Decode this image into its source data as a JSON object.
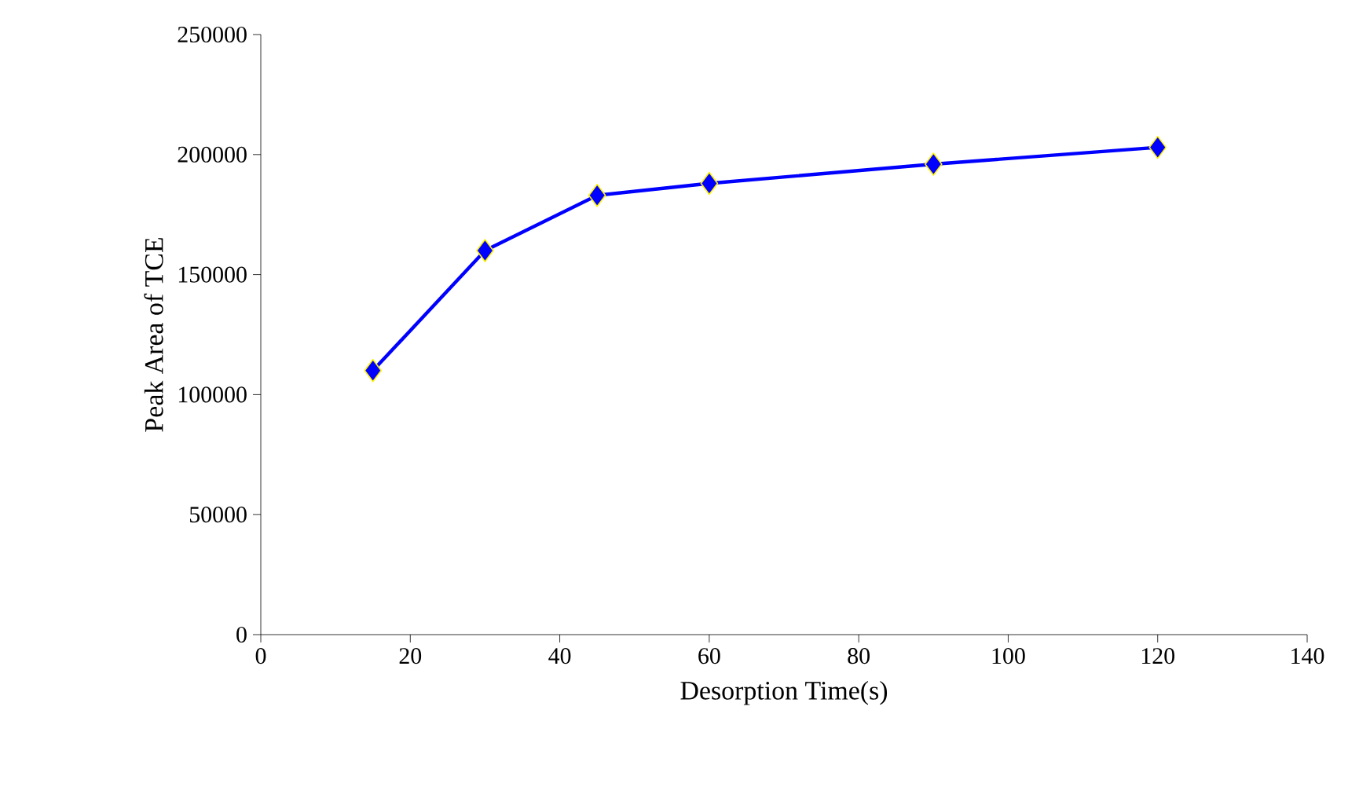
{
  "chart_data": {
    "type": "line",
    "xlabel": "Desorption Time(s)",
    "ylabel": "Peak Area of TCE",
    "x": [
      15,
      30,
      45,
      60,
      90,
      120
    ],
    "series": [
      {
        "color": "#0000ff",
        "values": [
          110000,
          160000,
          183000,
          188000,
          196000,
          203000
        ]
      }
    ],
    "xlim": [
      0,
      140
    ],
    "xticks": [
      0,
      20,
      40,
      60,
      80,
      100,
      120,
      140
    ],
    "ylim": [
      0,
      250000
    ],
    "yticks": [
      0,
      50000,
      100000,
      150000,
      200000,
      250000
    ],
    "grid": false,
    "marker": "diamond",
    "line_style": "solid"
  }
}
